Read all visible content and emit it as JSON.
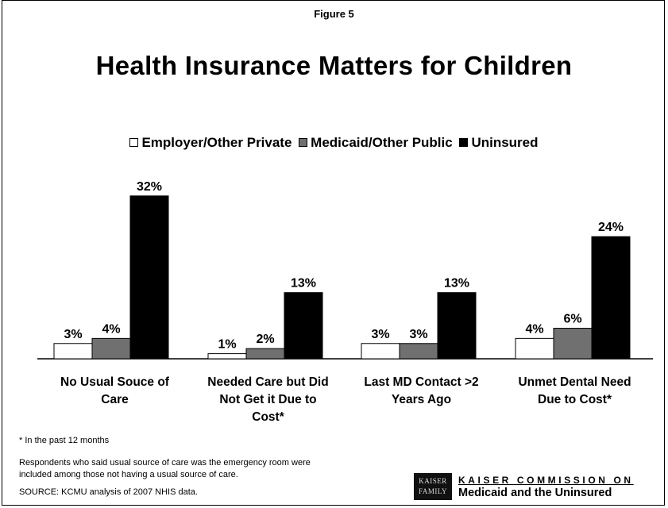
{
  "figure_label": "Figure 5",
  "chart_data": {
    "type": "bar",
    "title": "Health Insurance Matters for Children",
    "categories": [
      [
        "No Usual Souce of",
        "Care"
      ],
      [
        "Needed Care but Did",
        "Not Get it Due to",
        "Cost*"
      ],
      [
        "Last MD Contact >2",
        "Years Ago"
      ],
      [
        "Unmet Dental Need",
        "Due to Cost*"
      ]
    ],
    "series": [
      {
        "name": "Employer/Other Private",
        "values": [
          3,
          1,
          3,
          4
        ],
        "color": "#ffffff"
      },
      {
        "name": "Medicaid/Other Public",
        "values": [
          4,
          2,
          3,
          6
        ],
        "color": "#707070"
      },
      {
        "name": "Uninsured",
        "values": [
          32,
          13,
          13,
          24
        ],
        "color": "#000000"
      }
    ],
    "value_suffix": "%",
    "ylim": [
      0,
      34
    ],
    "legend": "top",
    "grid": false
  },
  "notes": {
    "footnote": "* In the past 12 months",
    "respondents_1": "Respondents who said usual source of care was the emergency room were",
    "respondents_2": "included among those not having a usual source of care.",
    "source": "SOURCE: KCMU analysis of 2007 NHIS data."
  },
  "branding": {
    "logo_line1": "KAISER",
    "logo_line2": "FAMILY",
    "org_line1": "KAISER COMMISSION ON",
    "org_line2": "Medicaid and the Uninsured"
  }
}
